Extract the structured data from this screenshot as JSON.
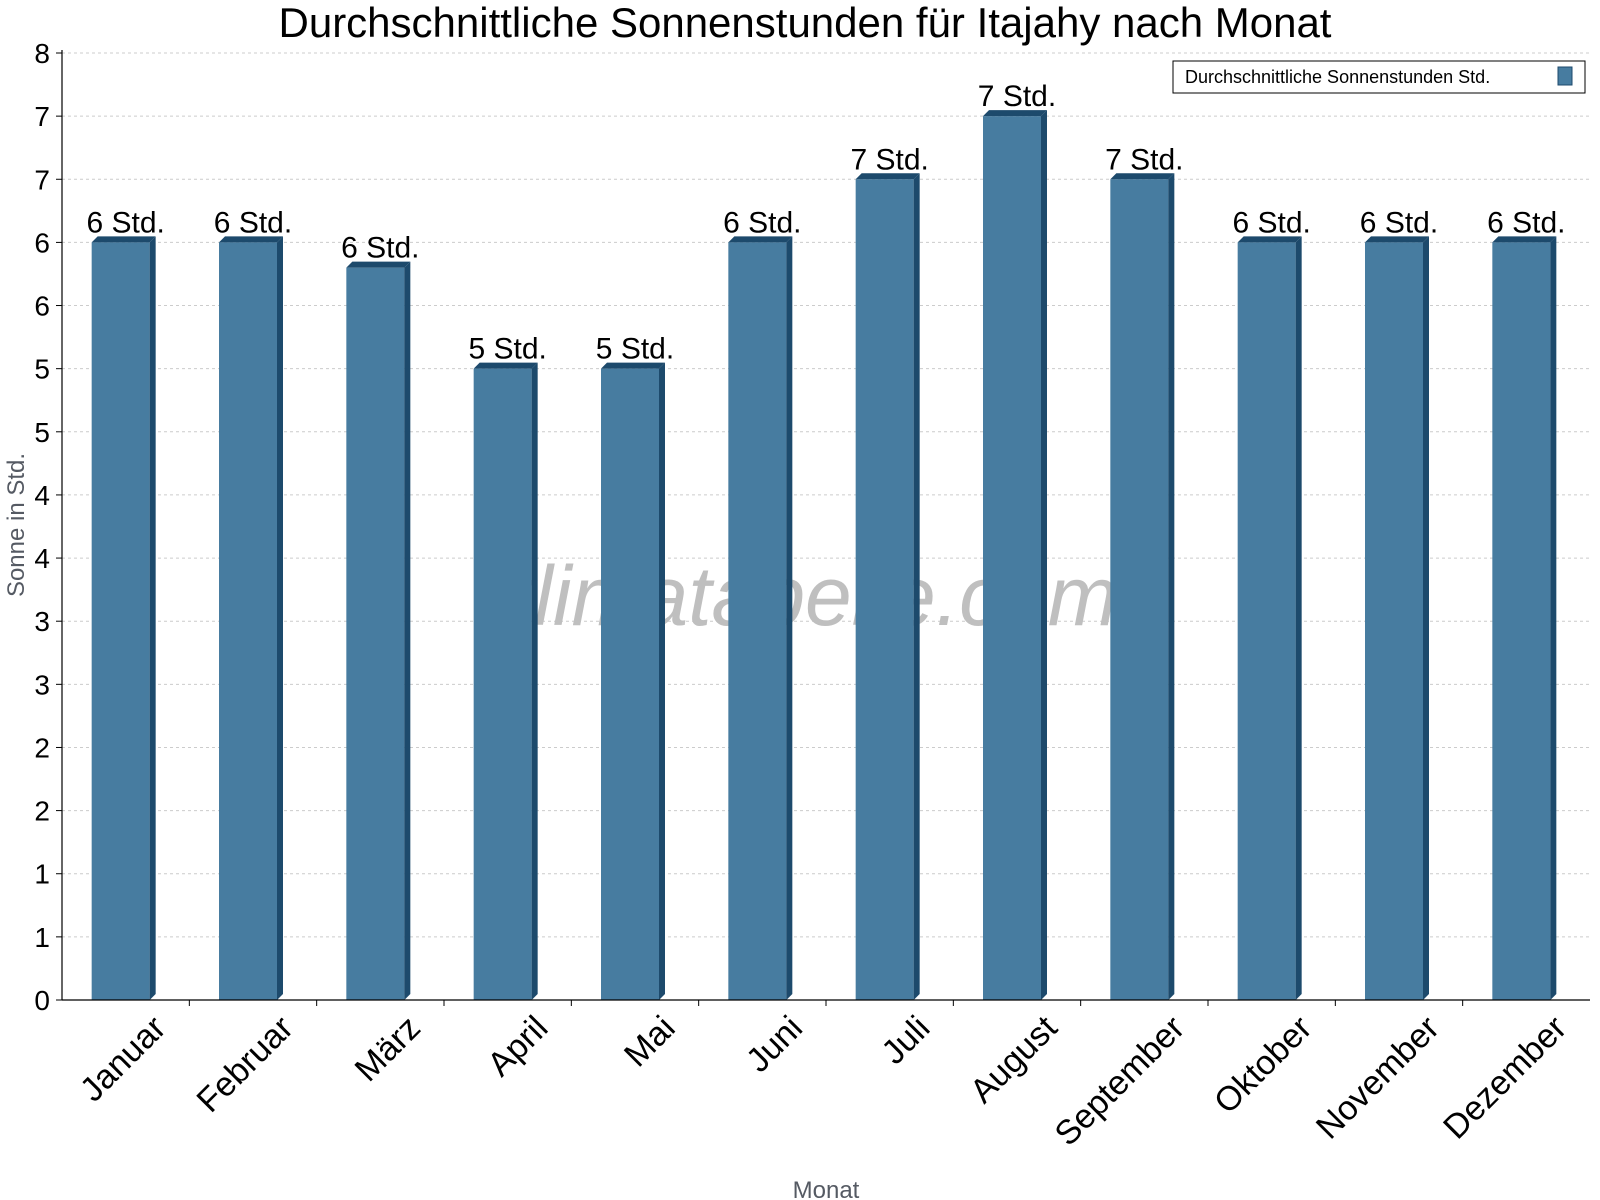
{
  "chart_data": {
    "type": "bar",
    "title": "Durchschnittliche Sonnenstunden für Itajahy nach Monat",
    "xlabel": "Monat",
    "ylabel": "Sonne in Std.",
    "categories": [
      "Januar",
      "Februar",
      "März",
      "April",
      "Mai",
      "Juni",
      "Juli",
      "August",
      "September",
      "Oktober",
      "November",
      "Dezember"
    ],
    "series": [
      {
        "name": "Durchschnittliche Sonnenstunden Std.",
        "values": [
          6.0,
          6.0,
          5.8,
          5.0,
          5.0,
          6.0,
          6.5,
          7.0,
          6.5,
          6.0,
          6.0,
          6.0
        ],
        "labels": [
          "6 Std.",
          "6 Std.",
          "6 Std.",
          "5 Std.",
          "5 Std.",
          "6 Std.",
          "7 Std.",
          "7 Std.",
          "7 Std.",
          "6 Std.",
          "6 Std.",
          "6 Std."
        ],
        "color": "#477ca0"
      }
    ],
    "ylim": [
      0,
      7.5
    ],
    "yticks": [
      0,
      0.5,
      1,
      1.5,
      2,
      2.5,
      3,
      3.5,
      4,
      4.5,
      5,
      5.5,
      6,
      6.5,
      7,
      7.5
    ],
    "ytick_labels": [
      "0",
      "1",
      "1",
      "2",
      "2",
      "3",
      "3",
      "4",
      "4",
      "5",
      "5",
      "6",
      "6",
      "7",
      "7",
      "8"
    ],
    "grid": true,
    "legend_position": "top-right",
    "watermark": "klimatabelle.com",
    "colors": {
      "bar_front": "#477ca0",
      "bar_side": "#1d4a6c",
      "grid": "#cccccc"
    }
  }
}
